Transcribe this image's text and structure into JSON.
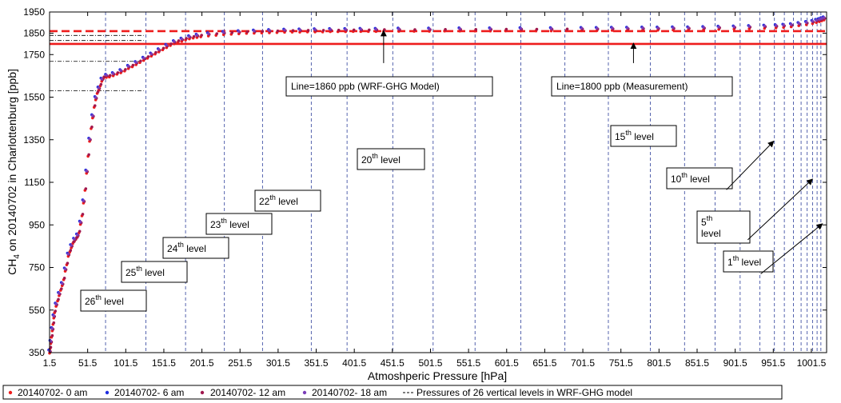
{
  "chart_data": {
    "type": "scatter",
    "xlabel": "Atmoshperic Pressure [hPa]",
    "ylabel_main": "CH",
    "ylabel_sub": "4",
    "ylabel_rest": " on 20140702 in Charlottenburg [ppb]",
    "xlim": [
      1.5,
      1021.5
    ],
    "ylim": [
      350,
      1950
    ],
    "xticks": [
      1.5,
      51.5,
      101.5,
      151.5,
      201.5,
      251.5,
      301.5,
      351.5,
      401.5,
      451.5,
      501.5,
      551.5,
      601.5,
      651.5,
      701.5,
      751.5,
      801.5,
      851.5,
      901.5,
      951.5,
      1001.5
    ],
    "yticks": [
      350,
      550,
      750,
      950,
      1150,
      1350,
      1550,
      1750,
      1850,
      1950
    ],
    "series": [
      {
        "name": "20140702- 0 am",
        "color": "#ee1c1c"
      },
      {
        "name": "20140702- 6 am",
        "color": "#1f2ee0"
      },
      {
        "name": "20140702- 12 am",
        "color": "#a0184e"
      },
      {
        "name": "20140702- 18 am",
        "color": "#7a3db8"
      }
    ],
    "profile_points": [
      [
        1.5,
        355
      ],
      [
        2,
        375
      ],
      [
        3,
        400
      ],
      [
        4,
        430
      ],
      [
        5,
        460
      ],
      [
        6,
        490
      ],
      [
        7,
        520
      ],
      [
        8,
        545
      ],
      [
        10,
        575
      ],
      [
        12,
        600
      ],
      [
        14,
        625
      ],
      [
        16,
        650
      ],
      [
        18,
        672
      ],
      [
        20,
        700
      ],
      [
        22,
        740
      ],
      [
        24,
        770
      ],
      [
        26,
        810
      ],
      [
        28,
        830
      ],
      [
        30,
        850
      ],
      [
        32,
        870
      ],
      [
        34,
        880
      ],
      [
        36,
        890
      ],
      [
        38,
        900
      ],
      [
        40,
        920
      ],
      [
        42,
        960
      ],
      [
        44,
        1000
      ],
      [
        46,
        1060
      ],
      [
        48,
        1120
      ],
      [
        50,
        1200
      ],
      [
        52,
        1280
      ],
      [
        54,
        1350
      ],
      [
        56,
        1410
      ],
      [
        58,
        1460
      ],
      [
        60,
        1510
      ],
      [
        62,
        1545
      ],
      [
        64,
        1575
      ],
      [
        66,
        1590
      ],
      [
        68,
        1610
      ],
      [
        70,
        1632
      ],
      [
        72,
        1645
      ],
      [
        76,
        1650
      ],
      [
        80,
        1652
      ],
      [
        85,
        1658
      ],
      [
        90,
        1665
      ],
      [
        95,
        1672
      ],
      [
        100,
        1680
      ],
      [
        105,
        1692
      ],
      [
        110,
        1700
      ],
      [
        115,
        1710
      ],
      [
        120,
        1720
      ],
      [
        125,
        1730
      ],
      [
        130,
        1740
      ],
      [
        135,
        1750
      ],
      [
        140,
        1760
      ],
      [
        145,
        1770
      ],
      [
        150,
        1780
      ],
      [
        155,
        1790
      ],
      [
        160,
        1800
      ],
      [
        165,
        1808
      ],
      [
        170,
        1815
      ],
      [
        175,
        1820
      ],
      [
        180,
        1826
      ],
      [
        185,
        1831
      ],
      [
        190,
        1835
      ],
      [
        195,
        1838
      ],
      [
        200,
        1841
      ],
      [
        210,
        1845
      ],
      [
        220,
        1848
      ],
      [
        230,
        1851
      ],
      [
        240,
        1853
      ],
      [
        250,
        1855
      ],
      [
        260,
        1857
      ],
      [
        270,
        1858
      ],
      [
        280,
        1859
      ],
      [
        290,
        1860
      ],
      [
        300,
        1861
      ],
      [
        310,
        1862
      ],
      [
        320,
        1863
      ],
      [
        330,
        1863
      ],
      [
        340,
        1864
      ],
      [
        350,
        1864
      ],
      [
        360,
        1864
      ],
      [
        370,
        1865
      ],
      [
        380,
        1865
      ],
      [
        390,
        1865
      ],
      [
        400,
        1866
      ],
      [
        410,
        1866
      ],
      [
        420,
        1866
      ],
      [
        430,
        1866
      ],
      [
        440,
        1867
      ],
      [
        460,
        1867
      ],
      [
        480,
        1867
      ],
      [
        500,
        1867
      ],
      [
        520,
        1868
      ],
      [
        540,
        1868
      ],
      [
        560,
        1868
      ],
      [
        580,
        1868
      ],
      [
        600,
        1869
      ],
      [
        620,
        1869
      ],
      [
        640,
        1869
      ],
      [
        660,
        1869
      ],
      [
        680,
        1870
      ],
      [
        700,
        1870
      ],
      [
        720,
        1870
      ],
      [
        740,
        1871
      ],
      [
        760,
        1871
      ],
      [
        780,
        1872
      ],
      [
        800,
        1872
      ],
      [
        820,
        1873
      ],
      [
        840,
        1873
      ],
      [
        860,
        1874
      ],
      [
        880,
        1876
      ],
      [
        900,
        1877
      ],
      [
        920,
        1879
      ],
      [
        940,
        1881
      ],
      [
        955,
        1883
      ],
      [
        965,
        1885
      ],
      [
        975,
        1888
      ],
      [
        985,
        1893
      ],
      [
        995,
        1898
      ],
      [
        1003,
        1903
      ],
      [
        1008,
        1908
      ],
      [
        1012,
        1912
      ],
      [
        1015,
        1916
      ],
      [
        1018,
        1920
      ]
    ],
    "level_pressures": [
      75,
      128,
      180,
      231,
      281,
      345,
      392,
      452,
      505,
      560,
      620,
      678,
      735,
      790,
      835,
      875,
      908,
      934,
      953,
      966,
      978,
      988,
      996,
      1003,
      1009,
      1014
    ],
    "level_ch4": [
      1580,
      1718,
      1816,
      1840
    ],
    "ref_lines": [
      {
        "value": 1860,
        "style": "dashed",
        "color": "#ee1c1c"
      },
      {
        "value": 1800,
        "style": "solid",
        "color": "#ee1c1c"
      }
    ],
    "annotations": [
      {
        "text": "Line=1860 ppb (WRF-GHG Model)",
        "arrow_from": [
          440,
          1710
        ],
        "arrow_to": [
          440,
          1862
        ]
      },
      {
        "text": "Line=1800 ppb (Measurement)",
        "arrow_from": [
          768,
          1710
        ],
        "arrow_to": [
          768,
          1803
        ]
      }
    ],
    "level_labels": [
      {
        "num": "26",
        "sup": "th",
        "word": " level"
      },
      {
        "num": "25",
        "sup": "th",
        "word": " level"
      },
      {
        "num": "24",
        "sup": "th",
        "word": " level"
      },
      {
        "num": "23",
        "sup": "th",
        "word": " level"
      },
      {
        "num": "22",
        "sup": "th",
        "word": " level"
      },
      {
        "num": "20",
        "sup": "th",
        "word": " level"
      },
      {
        "num": "15",
        "sup": "th",
        "word": " level"
      },
      {
        "num": "10",
        "sup": "th",
        "word": " level"
      },
      {
        "num": "5",
        "sup": "th",
        "word": " level"
      },
      {
        "num": "1",
        "sup": "th",
        "word": " level"
      }
    ],
    "level_arrows": [
      {
        "from": [
          890,
          1115
        ],
        "to": [
          952,
          1343
        ]
      },
      {
        "from": [
          918,
          880
        ],
        "to": [
          1003,
          1165
        ]
      },
      {
        "from": [
          935,
          720
        ],
        "to": [
          1016,
          955
        ]
      }
    ],
    "legend_dashed_label": "Pressures of 26 vertical levels in WRF-GHG model",
    "grid": false,
    "legend_position": "bottom"
  }
}
